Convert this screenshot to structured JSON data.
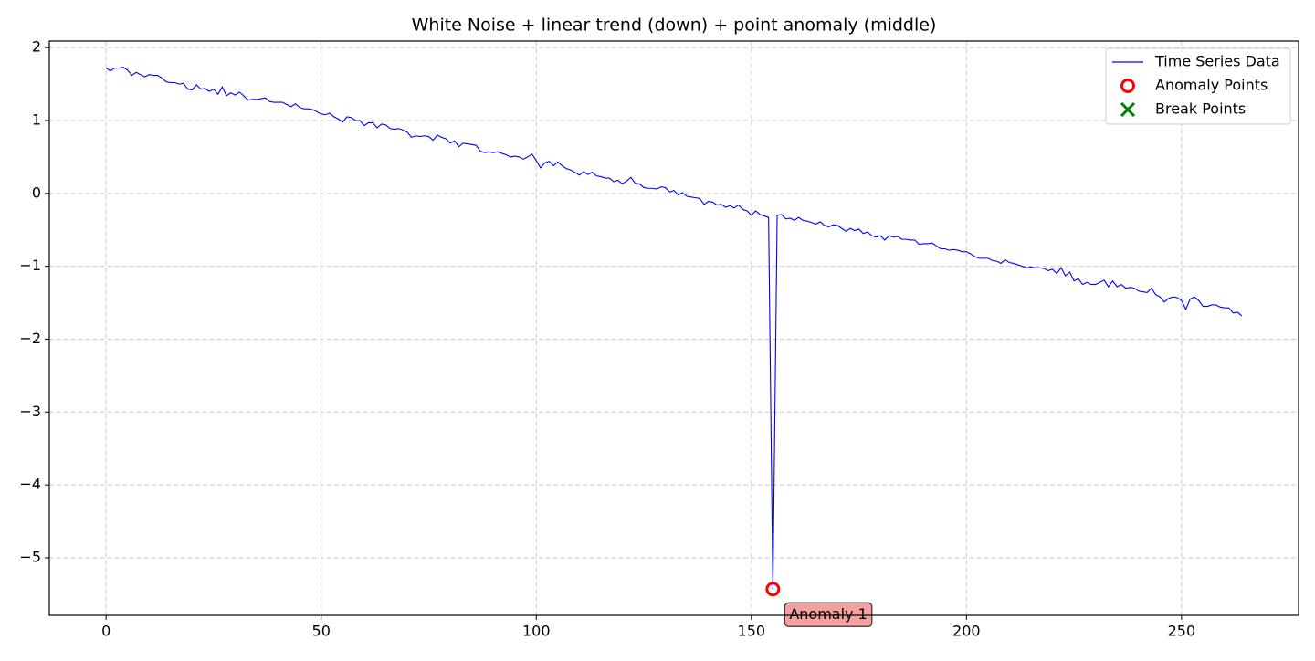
{
  "chart_data": {
    "type": "line",
    "title": "White Noise + linear trend (down) + point anomaly (middle)",
    "xlim": [
      -13.2,
      277.2
    ],
    "ylim": [
      -5.79,
      2.09
    ],
    "xticks": [
      0,
      50,
      100,
      150,
      200,
      250
    ],
    "yticks": [
      {
        "value": -5,
        "label": "−5"
      },
      {
        "value": -4,
        "label": "−4"
      },
      {
        "value": -3,
        "label": "−3"
      },
      {
        "value": -2,
        "label": "−2"
      },
      {
        "value": -1,
        "label": "−1"
      },
      0,
      1,
      2
    ],
    "grid": true,
    "legend": "upper right",
    "series": [
      {
        "name": "Time Series Data",
        "color": "#0000ff",
        "style": "line",
        "x": [
          0,
          1,
          2,
          3,
          4,
          5,
          6,
          7,
          8,
          9,
          10,
          11,
          12,
          13,
          14,
          15,
          16,
          17,
          18,
          19,
          20,
          21,
          22,
          23,
          24,
          25,
          26,
          27,
          28,
          29,
          30,
          31,
          32,
          33,
          34,
          35,
          36,
          37,
          38,
          39,
          40,
          41,
          42,
          43,
          44,
          45,
          46,
          47,
          48,
          49,
          50,
          51,
          52,
          53,
          54,
          55,
          56,
          57,
          58,
          59,
          60,
          61,
          62,
          63,
          64,
          65,
          66,
          67,
          68,
          69,
          70,
          71,
          72,
          73,
          74,
          75,
          76,
          77,
          78,
          79,
          80,
          81,
          82,
          83,
          84,
          85,
          86,
          87,
          88,
          89,
          90,
          91,
          92,
          93,
          94,
          95,
          96,
          97,
          98,
          99,
          100,
          101,
          102,
          103,
          104,
          105,
          106,
          107,
          108,
          109,
          110,
          111,
          112,
          113,
          114,
          115,
          116,
          117,
          118,
          119,
          120,
          121,
          122,
          123,
          124,
          125,
          126,
          127,
          128,
          129,
          130,
          131,
          132,
          133,
          134,
          135,
          136,
          137,
          138,
          139,
          140,
          141,
          142,
          143,
          144,
          145,
          146,
          147,
          148,
          149,
          150,
          151,
          152,
          153,
          154,
          155,
          156,
          157,
          158,
          159,
          160,
          161,
          162,
          163,
          164,
          165,
          166,
          167,
          168,
          169,
          170,
          171,
          172,
          173,
          174,
          175,
          176,
          177,
          178,
          179,
          180,
          181,
          182,
          183,
          184,
          185,
          186,
          187,
          188,
          189,
          190,
          191,
          192,
          193,
          194,
          195,
          196,
          197,
          198,
          199,
          200,
          201,
          202,
          203,
          204,
          205,
          206,
          207,
          208,
          209,
          210,
          211,
          212,
          213,
          214,
          215,
          216,
          217,
          218,
          219,
          220,
          221,
          222,
          223,
          224,
          225,
          226,
          227,
          228,
          229,
          230,
          231,
          232,
          233,
          234,
          235,
          236,
          237,
          238,
          239,
          240,
          241,
          242,
          243,
          244,
          245,
          246,
          247,
          248,
          249,
          250,
          251,
          252,
          253,
          254,
          255,
          256,
          257,
          258,
          259,
          260,
          261,
          262,
          263,
          264
        ],
        "values": [
          1.72,
          1.68,
          1.72,
          1.72,
          1.73,
          1.69,
          1.62,
          1.66,
          1.63,
          1.6,
          1.63,
          1.62,
          1.62,
          1.58,
          1.53,
          1.52,
          1.52,
          1.5,
          1.51,
          1.43,
          1.42,
          1.49,
          1.43,
          1.44,
          1.4,
          1.43,
          1.36,
          1.46,
          1.34,
          1.38,
          1.35,
          1.39,
          1.34,
          1.28,
          1.29,
          1.29,
          1.3,
          1.31,
          1.26,
          1.25,
          1.25,
          1.25,
          1.22,
          1.19,
          1.23,
          1.18,
          1.16,
          1.16,
          1.15,
          1.12,
          1.09,
          1.08,
          1.1,
          1.05,
          1.02,
          0.98,
          1.05,
          1.04,
          1.0,
          1.0,
          0.93,
          0.97,
          0.97,
          0.9,
          0.95,
          0.94,
          0.89,
          0.88,
          0.89,
          0.87,
          0.84,
          0.77,
          0.79,
          0.78,
          0.79,
          0.78,
          0.73,
          0.8,
          0.77,
          0.75,
          0.69,
          0.72,
          0.64,
          0.69,
          0.68,
          0.67,
          0.66,
          0.58,
          0.56,
          0.57,
          0.56,
          0.57,
          0.55,
          0.53,
          0.5,
          0.51,
          0.5,
          0.47,
          0.5,
          0.54,
          0.45,
          0.35,
          0.42,
          0.44,
          0.38,
          0.43,
          0.38,
          0.34,
          0.32,
          0.29,
          0.25,
          0.3,
          0.26,
          0.29,
          0.24,
          0.23,
          0.21,
          0.21,
          0.16,
          0.18,
          0.13,
          0.17,
          0.22,
          0.14,
          0.13,
          0.08,
          0.07,
          0.07,
          0.06,
          0.09,
          0.08,
          0.02,
          0.04,
          -0.02,
          0.01,
          -0.04,
          -0.05,
          -0.06,
          -0.07,
          -0.15,
          -0.11,
          -0.12,
          -0.16,
          -0.15,
          -0.19,
          -0.17,
          -0.2,
          -0.16,
          -0.22,
          -0.24,
          -0.3,
          -0.24,
          -0.29,
          -0.31,
          -0.33,
          -5.43,
          -0.3,
          -0.29,
          -0.35,
          -0.34,
          -0.37,
          -0.33,
          -0.37,
          -0.38,
          -0.4,
          -0.42,
          -0.39,
          -0.44,
          -0.46,
          -0.43,
          -0.44,
          -0.48,
          -0.52,
          -0.48,
          -0.51,
          -0.49,
          -0.55,
          -0.53,
          -0.58,
          -0.6,
          -0.58,
          -0.64,
          -0.58,
          -0.6,
          -0.59,
          -0.63,
          -0.63,
          -0.64,
          -0.64,
          -0.7,
          -0.69,
          -0.69,
          -0.68,
          -0.72,
          -0.76,
          -0.76,
          -0.78,
          -0.77,
          -0.78,
          -0.8,
          -0.8,
          -0.83,
          -0.87,
          -0.89,
          -0.89,
          -0.89,
          -0.92,
          -0.93,
          -0.96,
          -0.91,
          -0.95,
          -0.96,
          -0.98,
          -1.0,
          -1.02,
          -1.01,
          -1.02,
          -1.02,
          -1.03,
          -1.06,
          -1.04,
          -1.1,
          -1.02,
          -1.13,
          -1.08,
          -1.2,
          -1.17,
          -1.25,
          -1.22,
          -1.25,
          -1.25,
          -1.22,
          -1.19,
          -1.28,
          -1.2,
          -1.28,
          -1.25,
          -1.3,
          -1.29,
          -1.3,
          -1.34,
          -1.35,
          -1.36,
          -1.3,
          -1.39,
          -1.42,
          -1.49,
          -1.44,
          -1.42,
          -1.43,
          -1.47,
          -1.59,
          -1.45,
          -1.42,
          -1.47,
          -1.55,
          -1.55,
          -1.53,
          -1.53,
          -1.56,
          -1.57,
          -1.57,
          -1.64,
          -1.63,
          -1.68
        ]
      },
      {
        "name": "Anomaly Points",
        "color": "#ff0000",
        "style": "circle",
        "x": [
          155
        ],
        "values": [
          -5.43
        ]
      },
      {
        "name": "Break Points",
        "color": "#008000",
        "style": "cross",
        "x": [],
        "values": []
      }
    ],
    "annotations": [
      {
        "text": "Anomaly 1",
        "x": 155,
        "y": -5.43
      }
    ]
  }
}
